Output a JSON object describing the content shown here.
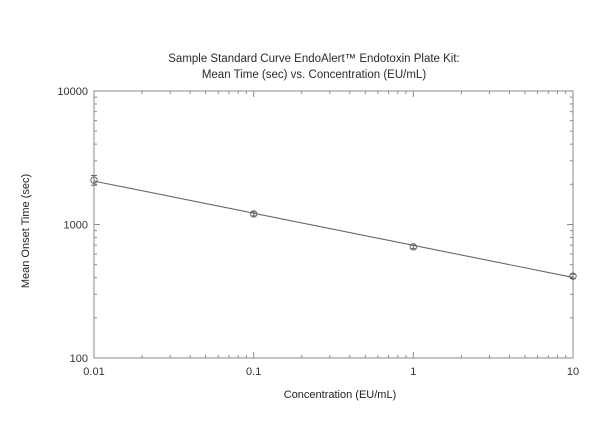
{
  "chart_data": {
    "type": "scatter",
    "title_lines": [
      "Sample Standard Curve EndoAlert™ Endotoxin Plate Kit:",
      "Mean Time (sec) vs. Concentration (EU/mL)"
    ],
    "xlabel": "Concentration (EU/mL)",
    "ylabel": "Mean Onset Time (sec)",
    "x_scale": "log",
    "y_scale": "log",
    "xlim": [
      0.01,
      10
    ],
    "ylim": [
      100,
      10000
    ],
    "x_ticks": [
      0.01,
      0.1,
      1,
      10
    ],
    "x_tick_labels": [
      "0.01",
      "0.1",
      "1",
      "10"
    ],
    "y_ticks": [
      100,
      1000,
      10000
    ],
    "y_tick_labels": [
      "100",
      "1000",
      "10000"
    ],
    "grid": false,
    "series": [
      {
        "x": [
          0.01,
          0.1,
          1,
          10
        ],
        "y": [
          2150,
          1200,
          680,
          410
        ],
        "y_err": [
          180,
          40,
          20,
          15
        ],
        "marker": "circle",
        "fit_line": true,
        "color": "#666666"
      }
    ]
  }
}
